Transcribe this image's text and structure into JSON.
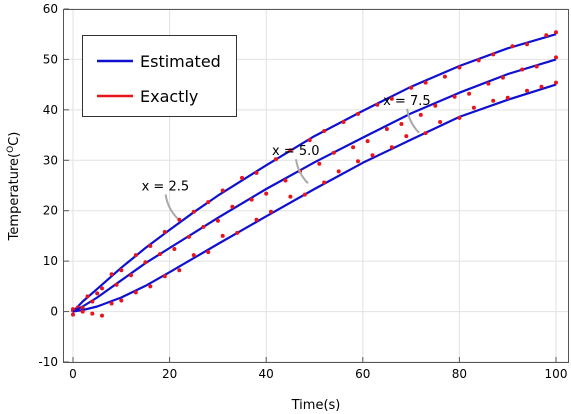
{
  "chart_data": {
    "type": "line",
    "xlabel": "Time(s)",
    "ylabel_parts": [
      "Temperature(",
      "O",
      "C)"
    ],
    "xlim": [
      0,
      100
    ],
    "ylim": [
      -10,
      60
    ],
    "xticks": [
      0,
      20,
      40,
      60,
      80,
      100
    ],
    "yticks": [
      -10,
      0,
      10,
      20,
      30,
      40,
      50,
      60
    ],
    "grid": true,
    "legend": {
      "position": "top-left",
      "entries": [
        {
          "name": "Estimated",
          "color": "#1010d0"
        },
        {
          "name": "Exactly",
          "color": "#e8141c"
        }
      ]
    },
    "series": [
      {
        "name": "x = 2.5",
        "estimated": {
          "x": [
            0,
            2,
            5,
            10,
            15,
            20,
            25,
            30,
            40,
            50,
            60,
            70,
            80,
            90,
            100
          ],
          "y": [
            0,
            2.0,
            4.5,
            8.7,
            12.6,
            16.2,
            19.7,
            23.0,
            29.0,
            34.8,
            39.8,
            44.6,
            48.7,
            52.2,
            55.0
          ]
        },
        "exact": {
          "x": [
            0,
            1,
            3,
            5,
            8,
            10,
            13,
            16,
            19,
            22,
            25,
            28,
            31,
            35,
            38,
            42,
            45,
            49,
            52,
            56,
            59,
            63,
            66,
            70,
            73,
            77,
            80,
            84,
            87,
            91,
            94,
            98,
            100
          ],
          "y": [
            0.5,
            0.8,
            3.0,
            3.6,
            7.4,
            8.2,
            11.2,
            13.0,
            15.8,
            18.2,
            19.8,
            21.7,
            24.0,
            26.5,
            27.5,
            30.2,
            32.0,
            34.0,
            35.8,
            37.6,
            39.2,
            41.0,
            42.2,
            44.4,
            45.4,
            46.6,
            48.4,
            49.8,
            51.0,
            52.6,
            53.0,
            54.8,
            55.4
          ]
        },
        "label": "x = 2.5",
        "label_at": [
          20,
          24
        ]
      },
      {
        "name": "x = 5.0",
        "estimated": {
          "x": [
            0,
            2,
            5,
            10,
            15,
            20,
            25,
            30,
            40,
            50,
            60,
            70,
            80,
            90,
            100
          ],
          "y": [
            0,
            1.0,
            2.8,
            6.2,
            9.6,
            12.6,
            15.6,
            18.6,
            24.3,
            29.6,
            34.5,
            39.3,
            43.4,
            47.1,
            50.0
          ]
        },
        "exact": {
          "x": [
            0,
            2,
            4,
            6,
            9,
            12,
            15,
            18,
            21,
            24,
            27,
            30,
            33,
            37,
            40,
            44,
            47,
            51,
            54,
            58,
            61,
            65,
            68,
            72,
            75,
            79,
            82,
            86,
            89,
            93,
            96,
            100
          ],
          "y": [
            0.2,
            0.7,
            2.0,
            4.6,
            5.3,
            7.2,
            9.8,
            11.4,
            12.4,
            14.8,
            16.8,
            18.0,
            20.8,
            22.2,
            23.4,
            26.0,
            27.8,
            29.3,
            31.5,
            32.6,
            33.8,
            36.2,
            37.2,
            39.0,
            40.8,
            42.6,
            43.2,
            45.2,
            46.4,
            48.0,
            48.6,
            50.4
          ]
        },
        "label": "x = 5.0",
        "label_at": [
          47,
          31
        ]
      },
      {
        "name": "x = 7.5",
        "estimated": {
          "x": [
            0,
            2,
            5,
            10,
            15,
            20,
            25,
            30,
            40,
            50,
            60,
            70,
            80,
            90,
            100
          ],
          "y": [
            0,
            0.3,
            1.0,
            2.8,
            5.1,
            7.8,
            10.6,
            13.4,
            18.9,
            24.3,
            29.5,
            34.1,
            38.6,
            42.0,
            45.0
          ]
        },
        "exact": {
          "x": [
            0,
            2,
            4,
            6,
            8,
            10,
            13,
            16,
            19,
            22,
            25,
            28,
            31,
            34,
            38,
            41,
            45,
            48,
            52,
            55,
            59,
            62,
            66,
            69,
            73,
            76,
            80,
            83,
            87,
            90,
            94,
            97,
            100
          ],
          "y": [
            -0.6,
            0.0,
            -0.4,
            -0.8,
            1.6,
            2.2,
            3.8,
            5.0,
            7.0,
            8.2,
            11.2,
            11.8,
            15.0,
            15.6,
            18.2,
            19.8,
            22.8,
            23.2,
            25.6,
            27.8,
            29.8,
            31.0,
            32.6,
            34.8,
            35.4,
            37.6,
            38.4,
            40.4,
            41.8,
            42.4,
            43.8,
            44.6,
            45.4
          ]
        },
        "label": "x = 7.5",
        "label_at": [
          70,
          41
        ]
      }
    ]
  },
  "colors": {
    "estimated": "#1010d0",
    "exact": "#e8141c",
    "grid": "#e2e2e2",
    "annot_line": "#a9a9a9"
  }
}
